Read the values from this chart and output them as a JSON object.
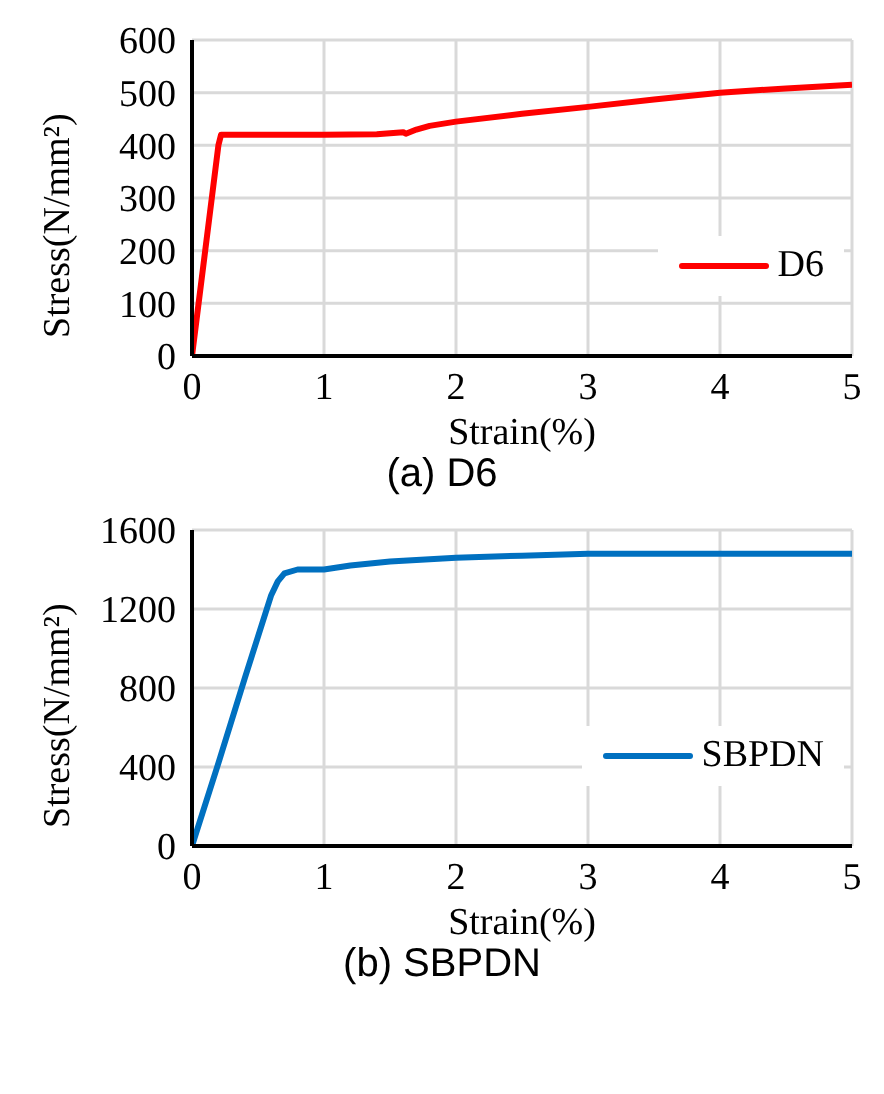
{
  "chart_data": [
    {
      "type": "line",
      "title": "(a)  D6",
      "xlabel": "Strain(%)",
      "ylabel": "Stress(N/mm²)",
      "xlim": [
        0,
        5
      ],
      "xticks": [
        0,
        1,
        2,
        3,
        4,
        5
      ],
      "ylim": [
        0,
        600
      ],
      "yticks": [
        0,
        100,
        200,
        300,
        400,
        500,
        600
      ],
      "grid": true,
      "legend": "bottom right",
      "marker": "none",
      "series": [
        {
          "name": "D6",
          "color": "#ff0000",
          "x": [
            0,
            0.1,
            0.2,
            0.22,
            0.6,
            1.0,
            1.4,
            1.6,
            1.62,
            1.7,
            1.8,
            2,
            2.5,
            3,
            3.5,
            4,
            4.5,
            5
          ],
          "values": [
            0,
            200,
            400,
            420,
            420,
            420,
            421,
            425,
            422,
            430,
            437,
            445,
            460,
            473,
            487,
            500,
            508,
            515
          ]
        }
      ]
    },
    {
      "type": "line",
      "title": "(b)  SBPDN",
      "xlabel": "Strain(%)",
      "ylabel": "Stress(N/mm²)",
      "xlim": [
        0,
        5
      ],
      "xticks": [
        0,
        1,
        2,
        3,
        4,
        5
      ],
      "ylim": [
        0,
        1600
      ],
      "yticks": [
        0,
        400,
        800,
        1200,
        1600
      ],
      "grid": true,
      "legend": "bottom right",
      "marker": "none",
      "series": [
        {
          "name": "SBPDN",
          "color": "#0070c0",
          "x": [
            0,
            0.2,
            0.4,
            0.6,
            0.65,
            0.7,
            0.8,
            1.0,
            1.2,
            1.5,
            2,
            2.5,
            3,
            4,
            4.5,
            5
          ],
          "values": [
            0,
            420,
            850,
            1270,
            1340,
            1380,
            1400,
            1400,
            1420,
            1440,
            1460,
            1470,
            1480,
            1480,
            1480,
            1480
          ]
        }
      ]
    }
  ]
}
